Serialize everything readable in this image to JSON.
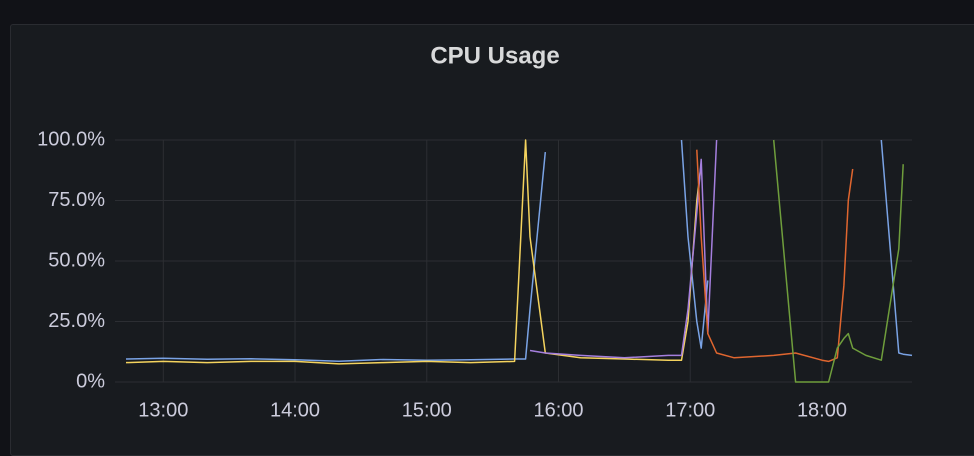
{
  "chart_data": {
    "type": "line",
    "title": "CPU Usage",
    "x": [
      "12:43",
      "13:00",
      "13:20",
      "13:40",
      "14:00",
      "14:20",
      "14:40",
      "15:00",
      "15:20",
      "15:40",
      "15:45",
      "15:47",
      "15:54",
      "16:10",
      "16:30",
      "16:50",
      "16:56",
      "16:59",
      "17:03",
      "17:05",
      "17:08",
      "17:12",
      "17:20",
      "17:38",
      "17:48",
      "18:00",
      "18:03",
      "18:07",
      "18:10",
      "18:12",
      "18:14",
      "18:20",
      "18:27",
      "18:35",
      "18:37",
      "18:41"
    ],
    "series": [
      {
        "color": "#7aa3e5",
        "values": [
          9.5,
          9.8,
          9.4,
          9.6,
          9.2,
          8.6,
          9.3,
          9,
          9.2,
          9.5,
          9.5,
          30,
          95,
          null,
          null,
          null,
          100,
          60,
          25,
          14,
          42,
          null,
          null,
          null,
          null,
          null,
          null,
          null,
          null,
          null,
          null,
          null,
          100,
          12,
          11.5,
          11
        ]
      },
      {
        "color": "#f4d35e",
        "values": [
          8,
          8.5,
          8,
          8.5,
          8.5,
          7.5,
          8,
          8.5,
          8,
          8.5,
          100,
          60,
          12,
          10,
          9.5,
          9,
          9,
          25,
          75,
          90,
          null,
          null,
          null,
          null,
          null,
          null,
          null,
          null,
          null,
          null,
          null,
          null,
          null,
          null,
          null,
          null
        ]
      },
      {
        "color": "#a57fde",
        "values": [
          null,
          null,
          null,
          null,
          null,
          null,
          null,
          null,
          null,
          null,
          null,
          13,
          12,
          11,
          10,
          11,
          11,
          30,
          70,
          92,
          20,
          100,
          null,
          null,
          null,
          null,
          null,
          null,
          null,
          null,
          null,
          null,
          null,
          null,
          null,
          null
        ]
      },
      {
        "color": "#e0662f",
        "values": [
          null,
          null,
          null,
          null,
          null,
          null,
          null,
          null,
          null,
          null,
          null,
          null,
          null,
          null,
          null,
          null,
          null,
          null,
          96,
          60,
          20,
          12,
          10,
          11,
          12,
          9,
          8.5,
          10,
          40,
          75,
          88,
          null,
          null,
          null,
          null,
          null
        ]
      },
      {
        "color": "#6f9e3c",
        "values": [
          null,
          null,
          null,
          null,
          null,
          null,
          null,
          null,
          null,
          null,
          null,
          null,
          null,
          null,
          null,
          null,
          null,
          null,
          null,
          null,
          null,
          null,
          null,
          100,
          0,
          0,
          0,
          14,
          18,
          20,
          14,
          11,
          9,
          55,
          90,
          null
        ]
      }
    ],
    "xlim": [
      "12:38",
      "18:41"
    ],
    "xticks": [
      "13:00",
      "14:00",
      "15:00",
      "16:00",
      "17:00",
      "18:00"
    ],
    "ylim": [
      0,
      100
    ],
    "yticks": [
      {
        "value": 0,
        "label": "0%"
      },
      {
        "value": 25,
        "label": "25.0%"
      },
      {
        "value": 50,
        "label": "50.0%"
      },
      {
        "value": 75,
        "label": "75.0%"
      },
      {
        "value": 100,
        "label": "100.0%"
      }
    ],
    "grid": true
  }
}
